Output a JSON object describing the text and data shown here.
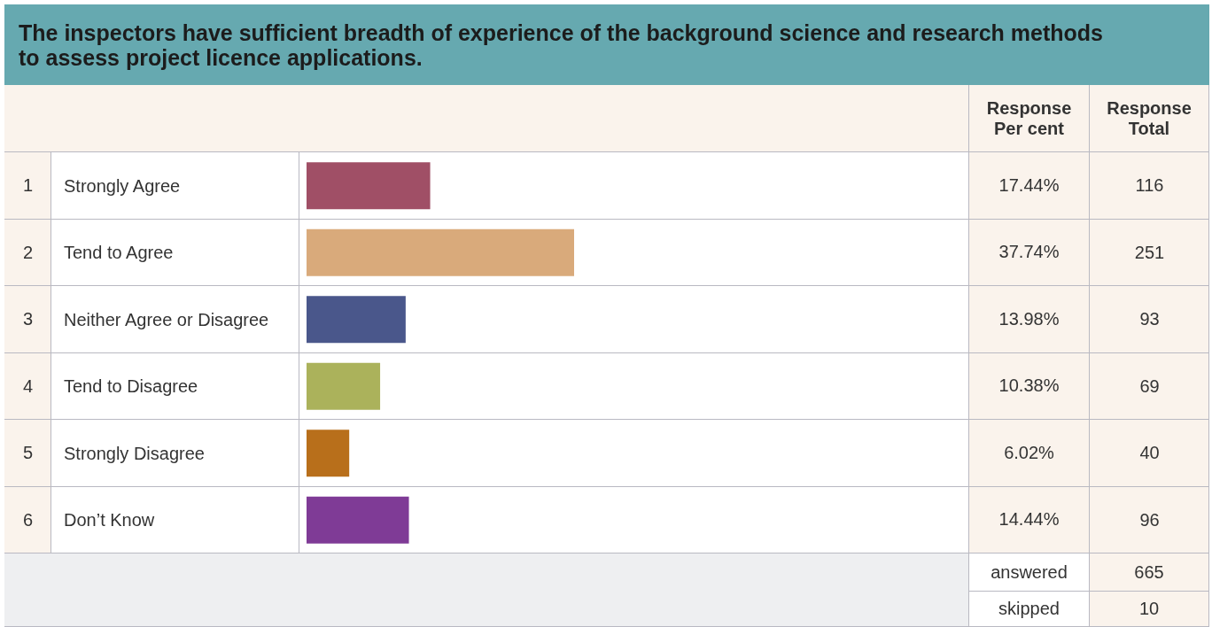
{
  "chart_data": {
    "type": "bar",
    "orientation": "horizontal",
    "title": "The inspectors have sufficient breadth of experience of the background science and research methods to assess project licence applications.",
    "categories": [
      "Strongly Agree",
      "Tend to Agree",
      "Neither Agree or Disagree",
      "Tend to Disagree",
      "Strongly Disagree",
      "Don’t Know"
    ],
    "values": [
      17.44,
      37.74,
      13.98,
      10.38,
      6.02,
      14.44
    ],
    "colors": [
      "#a04f66",
      "#d9aa7b",
      "#4a578b",
      "#abb25b",
      "#b86f1b",
      "#7f3b96"
    ],
    "value_labels": [
      "17.44%",
      "37.74%",
      "13.98%",
      "10.38%",
      "6.02%",
      "14.44%"
    ],
    "annotations": [
      "Response Per cent",
      "Response Total",
      "answered",
      "665",
      "skipped",
      "10",
      "1",
      "116",
      "2",
      "251",
      "3",
      "93",
      "4",
      "69",
      "5",
      "40",
      "6",
      "96"
    ]
  }
}
